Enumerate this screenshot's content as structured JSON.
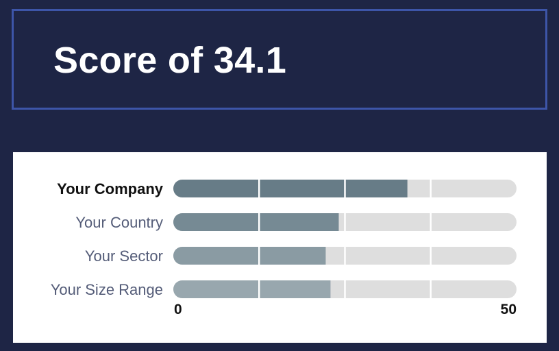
{
  "header": {
    "title": "Score of 34.1"
  },
  "colors": {
    "track": "#dedede",
    "gridline": "#ffffff",
    "bar_highlight": "#677c87",
    "bar_country": "#768a94",
    "bar_sector": "#8a9ba3",
    "bar_size": "#98a7ae",
    "label_highlight": "#111111",
    "label_default": "#545c78"
  },
  "chart_data": {
    "type": "bar",
    "orientation": "horizontal",
    "categories": [
      "Your Company",
      "Your Country",
      "Your Sector",
      "Your Size Range"
    ],
    "values": [
      34.1,
      24.1,
      22.2,
      22.9
    ],
    "highlight": "Your Company",
    "xlim": [
      0,
      50
    ],
    "tick_labels": [
      "0",
      "50"
    ],
    "gridlines_at": [
      12.5,
      25,
      37.5
    ],
    "grid": true
  }
}
